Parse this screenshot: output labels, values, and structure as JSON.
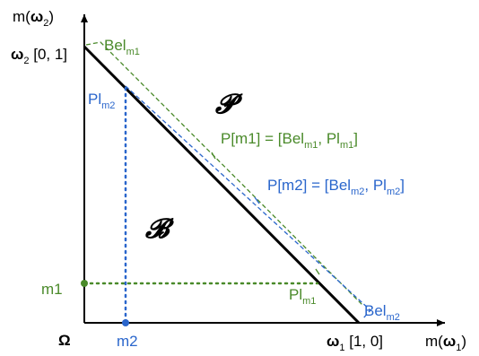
{
  "colors": {
    "axis": "#000000",
    "green": "#4a8a2a",
    "blue": "#2a66cc"
  },
  "axes": {
    "y_axis_label": {
      "prefix": "m(",
      "bold": "ω",
      "sub": "2",
      "suffix": ")"
    },
    "x_axis_label": {
      "prefix": "m(",
      "bold": "ω",
      "sub": "1",
      "suffix": ")"
    },
    "origin_label": "Ω"
  },
  "vertices": {
    "omega2": {
      "bold": "ω",
      "sub": "2",
      "coords": " [0, 1]"
    },
    "omega1": {
      "bold": "ω",
      "sub": "1",
      "coords": " [1, 0]"
    }
  },
  "points": {
    "m1": {
      "label": "m1",
      "x": 0,
      "y": 0.16
    },
    "m2": {
      "label": "m2",
      "x": 0.16,
      "y": 0
    }
  },
  "regions": {
    "B": "𝓑",
    "P": "𝓟"
  },
  "labels": {
    "bel_m1": {
      "main": "Bel",
      "sub": "m1"
    },
    "pl_m2": {
      "main": "Pl",
      "sub": "m2"
    },
    "pl_m1": {
      "main": "Pl",
      "sub": "m1"
    },
    "bel_m2": {
      "main": "Bel",
      "sub": "m2"
    },
    "p_m1": {
      "prefix": "P[m1] = [",
      "a_main": "Bel",
      "a_sub": "m1",
      "sep": ", ",
      "b_main": "Pl",
      "b_sub": "m1",
      "suffix": "]"
    },
    "p_m2": {
      "prefix": "P[m2] = [",
      "a_main": "Bel",
      "a_sub": "m2",
      "sep": ", ",
      "b_main": "Pl",
      "b_sub": "m2",
      "suffix": "]"
    }
  }
}
